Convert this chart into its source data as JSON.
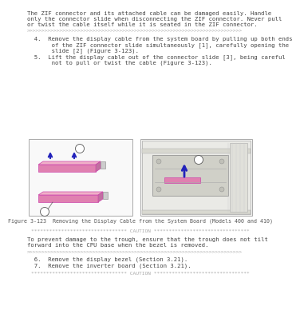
{
  "page_bg": "#ffffff",
  "para1_line1": "The ZIF connector and its attached cable can be damaged easily. Handle",
  "para1_line2": "only the connector slide when disconnecting the ZIF connector. Never pull",
  "para1_line3": "or twist the cable itself while it is seated in the ZIF connector.",
  "sep_char": ">",
  "sep_count": 72,
  "step4_line1": "  4.  Remove the display cable from the system board by pulling up both ends",
  "step4_line2": "       of the ZIF connector slide simultaneously [1], carefully opening the",
  "step4_line3": "       slide [2] (Figure 3-123).",
  "step5_line1": "  5.  Lift the display cable out of the connector slide [3], being careful",
  "step5_line2": "       not to pull or twist the cable (Figure 3-123).",
  "fig_caption": "Figure 3-123  Removing the Display Cable from the System Board (Models 400 and 410)",
  "caution_mid": "******************************** CAUTION ********************************",
  "caution_text_line1": "To prevent damage to the trough, ensure that the trough does not tilt",
  "caution_text_line2": "forward into the CPU base when the bezel is removed.",
  "sep2_char": ">",
  "sep2_count": 72,
  "step6": "  6.  Remove the display bezel (Section 3.21).",
  "step7": "  7.  Remove the inverter board (Section 3.21).",
  "arrow_color": "#2222bb",
  "connector_fill": "#e080b0",
  "connector_edge": "#cc44aa",
  "text_color": "#444444",
  "sep_color": "#aaaaaa",
  "box_edge": "#aaaaaa",
  "box_face": "#ffffff",
  "fontsize_body": 5.2,
  "fontsize_sep": 4.5,
  "fontsize_cap": 4.8
}
